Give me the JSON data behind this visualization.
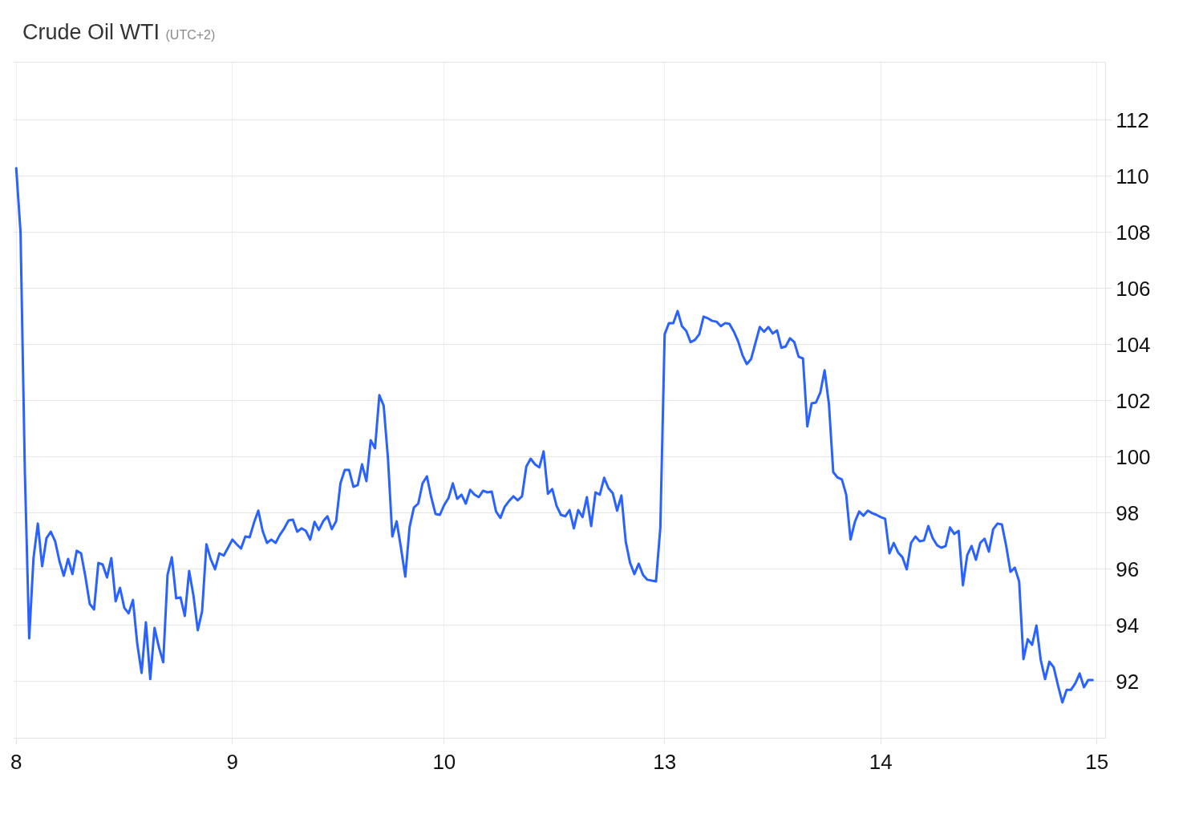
{
  "chart_data": {
    "type": "line",
    "title": "Crude Oil WTI",
    "subtitle": "(UTC+2)",
    "color": "#2962ff",
    "line_style": "solid",
    "grid": true,
    "ylim": [
      90,
      114.05
    ],
    "yticks": [
      92,
      94,
      96,
      98,
      100,
      102,
      104,
      106,
      108,
      110,
      112
    ],
    "categories": [
      "8",
      null,
      null,
      null,
      null,
      null,
      null,
      null,
      null,
      null,
      null,
      null,
      null,
      null,
      null,
      null,
      null,
      null,
      null,
      null,
      null,
      null,
      null,
      null,
      null,
      null,
      null,
      null,
      null,
      null,
      null,
      null,
      null,
      null,
      null,
      null,
      null,
      null,
      null,
      null,
      null,
      null,
      null,
      null,
      null,
      null,
      null,
      null,
      null,
      null,
      "9",
      null,
      null,
      null,
      null,
      null,
      null,
      null,
      null,
      null,
      null,
      null,
      null,
      null,
      null,
      null,
      null,
      null,
      null,
      null,
      null,
      null,
      null,
      null,
      null,
      null,
      null,
      null,
      null,
      null,
      null,
      null,
      null,
      null,
      null,
      null,
      null,
      null,
      null,
      null,
      null,
      null,
      null,
      null,
      null,
      null,
      null,
      null,
      null,
      "10",
      null,
      null,
      null,
      null,
      null,
      null,
      null,
      null,
      null,
      null,
      null,
      null,
      null,
      null,
      null,
      null,
      null,
      null,
      null,
      null,
      null,
      null,
      null,
      null,
      null,
      null,
      null,
      null,
      null,
      null,
      null,
      null,
      null,
      null,
      null,
      null,
      null,
      null,
      null,
      null,
      null,
      null,
      null,
      null,
      null,
      null,
      null,
      null,
      null,
      null,
      "13",
      null,
      null,
      null,
      null,
      null,
      null,
      null,
      null,
      null,
      null,
      null,
      null,
      null,
      null,
      null,
      null,
      null,
      null,
      null,
      null,
      null,
      null,
      null,
      null,
      null,
      null,
      null,
      null,
      null,
      null,
      null,
      null,
      null,
      null,
      null,
      null,
      null,
      null,
      null,
      null,
      null,
      null,
      null,
      null,
      null,
      null,
      null,
      null,
      null,
      "14",
      null,
      null,
      null,
      null,
      null,
      null,
      null,
      null,
      null,
      null,
      null,
      null,
      null,
      null,
      null,
      null,
      null,
      null,
      null,
      null,
      null,
      null,
      null,
      null,
      null,
      null,
      null,
      null,
      null,
      null,
      null,
      null,
      null,
      null,
      null,
      null,
      null,
      null,
      null,
      null,
      null,
      null,
      null,
      null,
      null,
      null,
      null,
      null,
      null,
      "15"
    ],
    "values": [
      110.29,
      108.0,
      99.45,
      93.54,
      96.4,
      97.63,
      96.11,
      97.11,
      97.34,
      97.0,
      96.29,
      95.77,
      96.37,
      95.83,
      96.66,
      96.57,
      95.74,
      94.77,
      94.57,
      96.23,
      96.17,
      95.71,
      96.4,
      94.86,
      95.34,
      94.63,
      94.43,
      94.91,
      93.34,
      92.31,
      94.11,
      92.09,
      93.91,
      93.23,
      92.69,
      95.8,
      96.43,
      94.97,
      95.0,
      94.34,
      95.94,
      95.06,
      93.83,
      94.51,
      96.89,
      96.36,
      96.0,
      96.57,
      96.49,
      96.77,
      97.06,
      96.89,
      96.74,
      97.17,
      97.14,
      97.66,
      98.09,
      97.37,
      96.94,
      97.06,
      96.94,
      97.23,
      97.46,
      97.74,
      97.77,
      97.34,
      97.46,
      97.37,
      97.06,
      97.69,
      97.4,
      97.71,
      97.89,
      97.43,
      97.71,
      99.06,
      99.54,
      99.54,
      98.94,
      99.0,
      99.74,
      99.14,
      100.6,
      100.31,
      102.2,
      101.83,
      99.94,
      97.17,
      97.71,
      96.77,
      95.74,
      97.51,
      98.2,
      98.34,
      99.06,
      99.31,
      98.57,
      97.97,
      97.94,
      98.29,
      98.54,
      99.06,
      98.51,
      98.66,
      98.34,
      98.83,
      98.66,
      98.57,
      98.8,
      98.74,
      98.77,
      98.06,
      97.83,
      98.23,
      98.43,
      98.6,
      98.46,
      98.6,
      99.66,
      99.94,
      99.74,
      99.63,
      100.2,
      98.69,
      98.86,
      98.26,
      97.94,
      97.89,
      98.11,
      97.46,
      98.11,
      97.86,
      98.57,
      97.54,
      98.74,
      98.66,
      99.26,
      98.89,
      98.71,
      98.09,
      98.63,
      96.98,
      96.23,
      95.83,
      96.2,
      95.8,
      95.63,
      95.6,
      95.57,
      97.49,
      104.37,
      104.77,
      104.77,
      105.2,
      104.66,
      104.49,
      104.09,
      104.17,
      104.37,
      105.0,
      104.94,
      104.85,
      104.82,
      104.66,
      104.77,
      104.74,
      104.47,
      104.12,
      103.63,
      103.31,
      103.49,
      104.06,
      104.63,
      104.46,
      104.63,
      104.4,
      104.51,
      103.89,
      103.94,
      104.23,
      104.09,
      103.57,
      103.51,
      101.09,
      101.91,
      101.94,
      102.29,
      103.09,
      101.89,
      99.46,
      99.27,
      99.2,
      98.66,
      97.06,
      97.69,
      98.06,
      97.91,
      98.09,
      98.0,
      97.94,
      97.86,
      97.8,
      96.57,
      96.94,
      96.6,
      96.43,
      96.0,
      96.94,
      97.17,
      97.0,
      97.03,
      97.54,
      97.11,
      96.86,
      96.77,
      96.83,
      97.49,
      97.26,
      97.37,
      95.43,
      96.51,
      96.83,
      96.34,
      96.94,
      97.09,
      96.63,
      97.43,
      97.63,
      97.6,
      96.84,
      95.91,
      96.06,
      95.57,
      92.8,
      93.51,
      93.31,
      94.0,
      92.77,
      92.09,
      92.71,
      92.51,
      91.86,
      91.26,
      91.71,
      91.71,
      91.94,
      92.29,
      91.8,
      92.06,
      92.06,
      null
    ]
  }
}
